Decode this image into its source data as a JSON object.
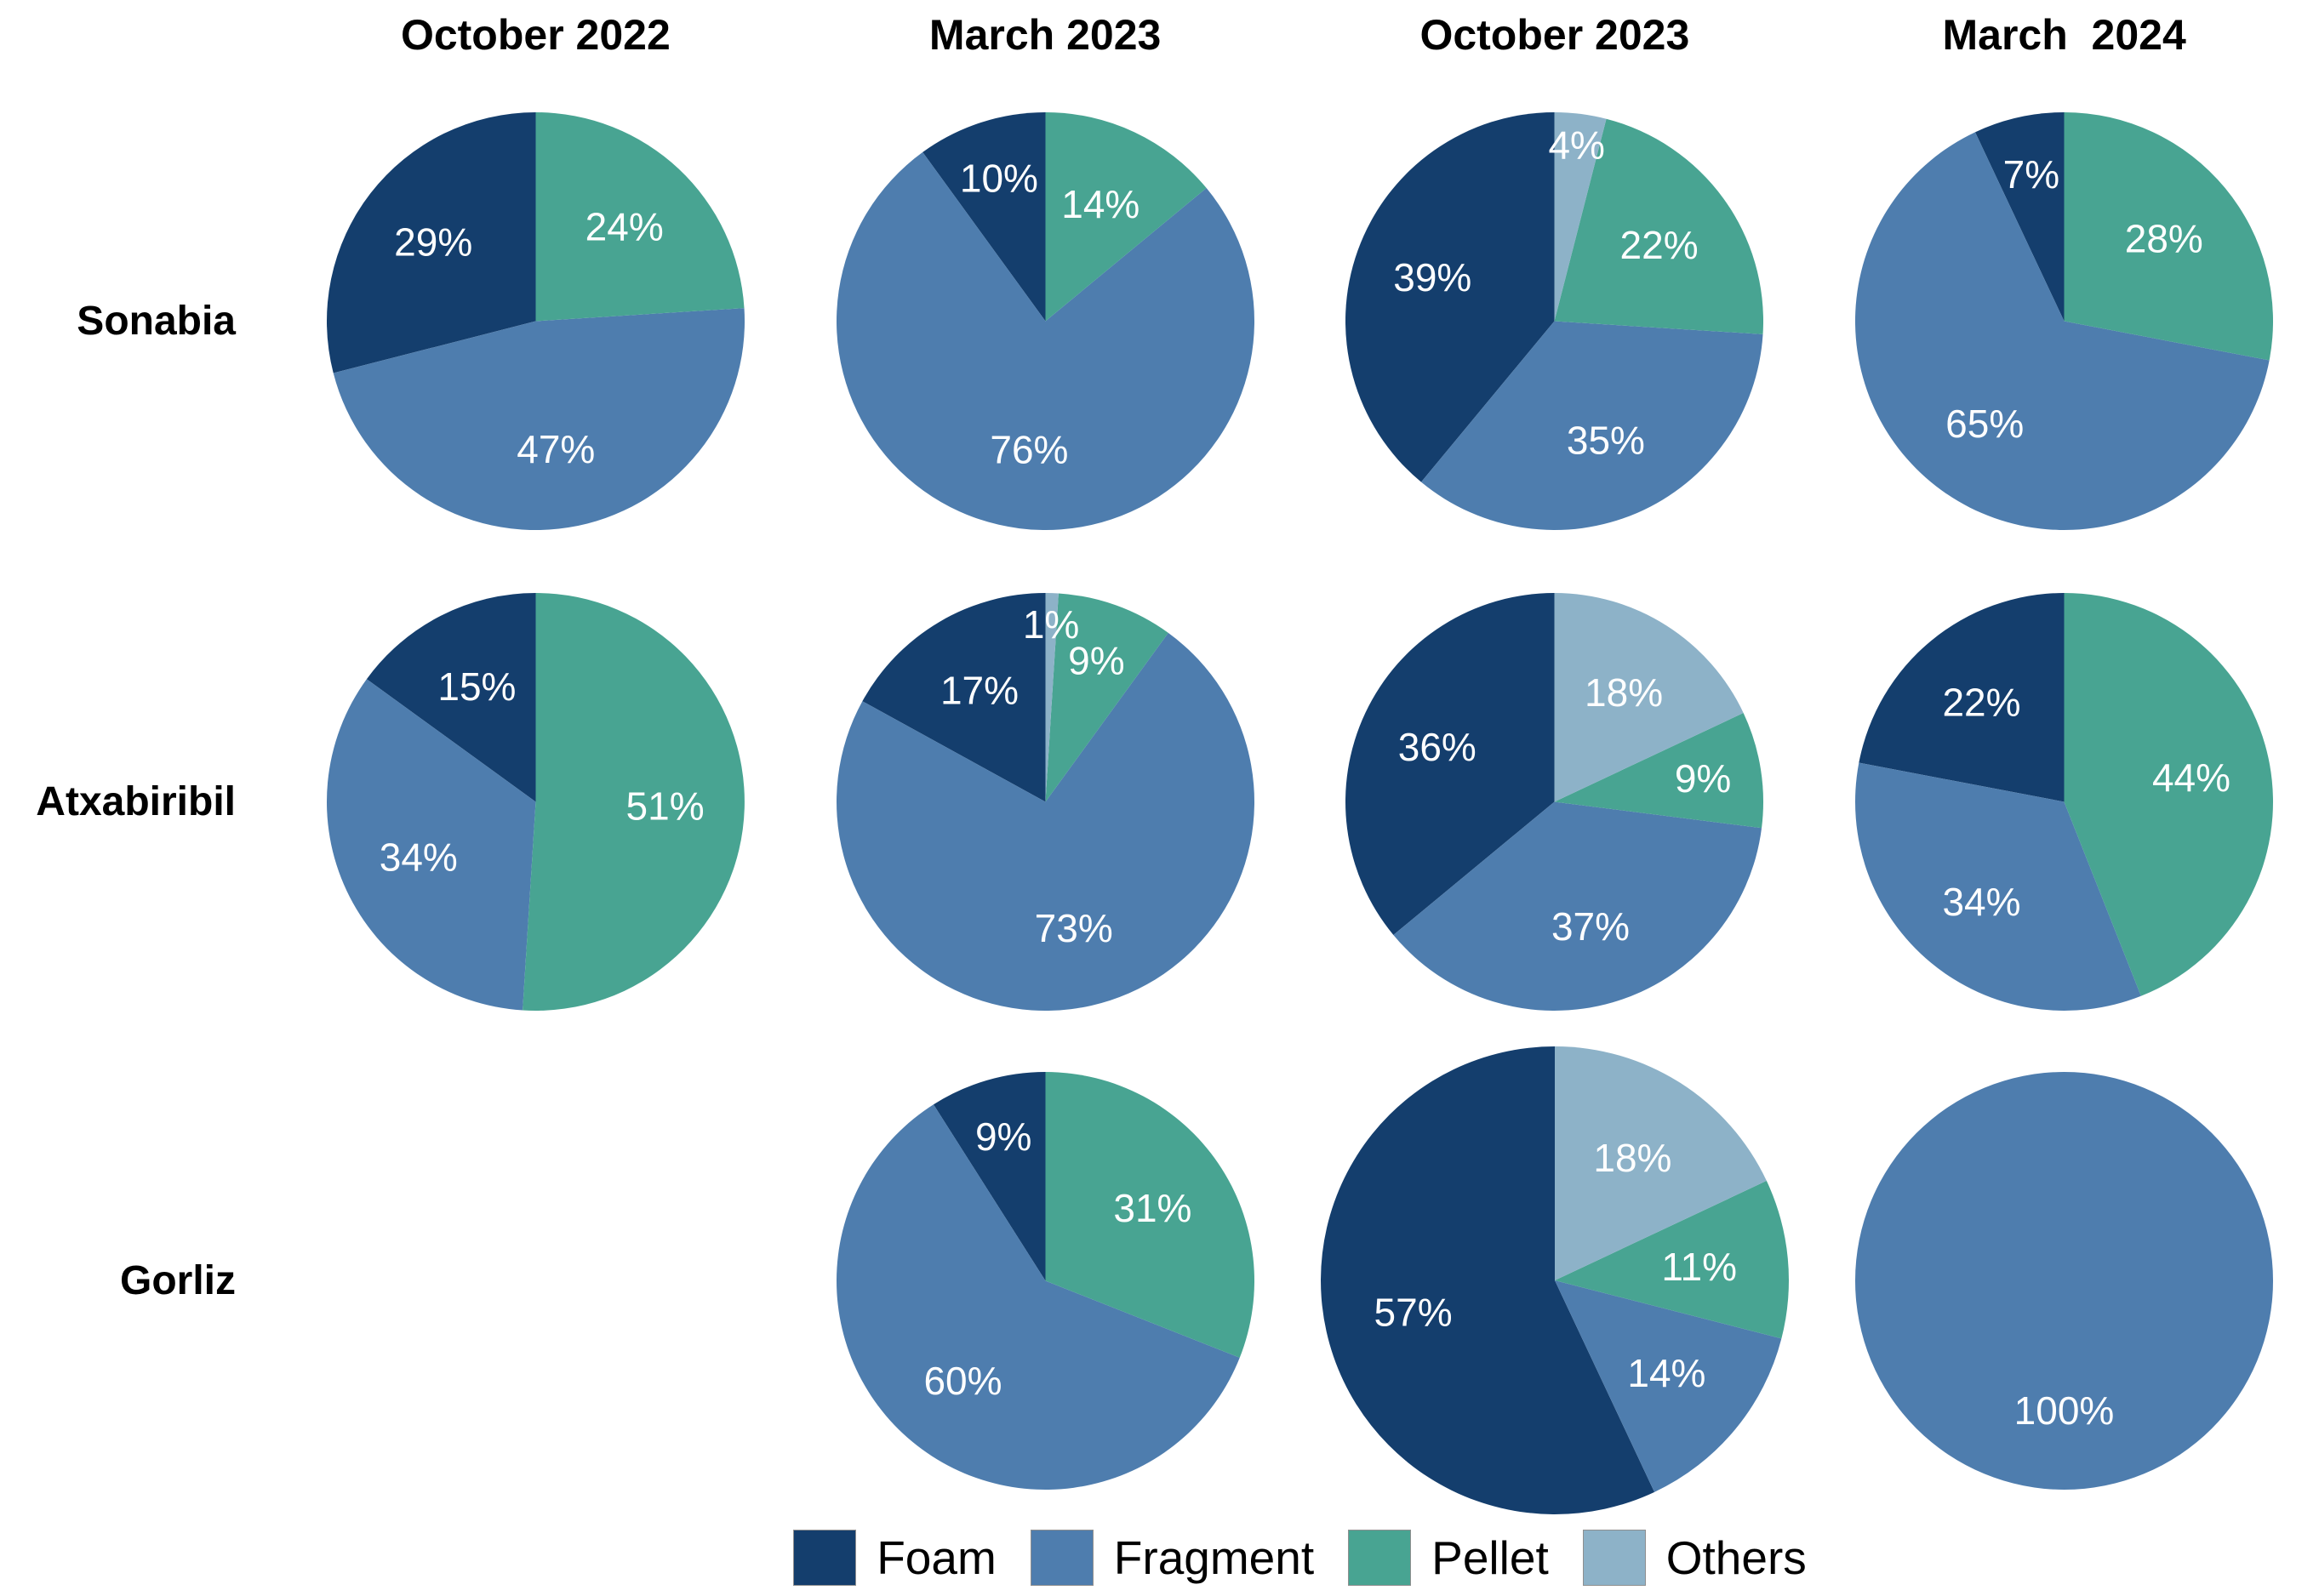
{
  "chart_data": {
    "type": "pie",
    "layout": "grid-of-pies",
    "title": "",
    "columns": [
      "October 2022",
      "March 2023",
      "October 2023",
      "March  2024"
    ],
    "rows": [
      "Sonabia",
      "Atxabiribil",
      "Gorliz"
    ],
    "categories": [
      "Foam",
      "Fragment",
      "Pellet",
      "Others"
    ],
    "colors": {
      "Foam": "#143e6d",
      "Fragment": "#4e7dae",
      "Pellet": "#48a492",
      "Others": "#8db2c8"
    },
    "label_color": "#ffffff",
    "start_angle": 90,
    "direction": "counterclockwise",
    "legend_position": "bottom",
    "pies": [
      {
        "row": "Sonabia",
        "column": "October 2022",
        "slices": [
          {
            "category": "Foam",
            "value": 29,
            "label": "29%"
          },
          {
            "category": "Fragment",
            "value": 47,
            "label": "47%"
          },
          {
            "category": "Pellet",
            "value": 24,
            "label": "24%"
          }
        ]
      },
      {
        "row": "Sonabia",
        "column": "March 2023",
        "slices": [
          {
            "category": "Foam",
            "value": 10,
            "label": "10%"
          },
          {
            "category": "Fragment",
            "value": 76,
            "label": "76%"
          },
          {
            "category": "Pellet",
            "value": 14,
            "label": "14%"
          }
        ]
      },
      {
        "row": "Sonabia",
        "column": "October 2023",
        "slices": [
          {
            "category": "Foam",
            "value": 39,
            "label": "39%"
          },
          {
            "category": "Fragment",
            "value": 35,
            "label": "35%"
          },
          {
            "category": "Pellet",
            "value": 22,
            "label": "22%"
          },
          {
            "category": "Others",
            "value": 4,
            "label": "4%"
          }
        ]
      },
      {
        "row": "Sonabia",
        "column": "March  2024",
        "slices": [
          {
            "category": "Foam",
            "value": 7,
            "label": "7%"
          },
          {
            "category": "Fragment",
            "value": 65,
            "label": "65%"
          },
          {
            "category": "Pellet",
            "value": 28,
            "label": "28%"
          }
        ]
      },
      {
        "row": "Atxabiribil",
        "column": "October 2022",
        "slices": [
          {
            "category": "Foam",
            "value": 15,
            "label": "15%"
          },
          {
            "category": "Fragment",
            "value": 34,
            "label": "34%"
          },
          {
            "category": "Pellet",
            "value": 51,
            "label": "51%"
          }
        ]
      },
      {
        "row": "Atxabiribil",
        "column": "March 2023",
        "slices": [
          {
            "category": "Foam",
            "value": 17,
            "label": "17%"
          },
          {
            "category": "Fragment",
            "value": 73,
            "label": "73%"
          },
          {
            "category": "Pellet",
            "value": 9,
            "label": "9%"
          },
          {
            "category": "Others",
            "value": 1,
            "label": "1%"
          }
        ]
      },
      {
        "row": "Atxabiribil",
        "column": "October 2023",
        "slices": [
          {
            "category": "Foam",
            "value": 36,
            "label": "36%"
          },
          {
            "category": "Fragment",
            "value": 37,
            "label": "37%"
          },
          {
            "category": "Pellet",
            "value": 9,
            "label": "9%"
          },
          {
            "category": "Others",
            "value": 18,
            "label": "18%"
          }
        ]
      },
      {
        "row": "Atxabiribil",
        "column": "March  2024",
        "slices": [
          {
            "category": "Foam",
            "value": 22,
            "label": "22%"
          },
          {
            "category": "Fragment",
            "value": 34,
            "label": "34%"
          },
          {
            "category": "Pellet",
            "value": 44,
            "label": "44%"
          }
        ]
      },
      null,
      {
        "row": "Gorliz",
        "column": "March 2023",
        "slices": [
          {
            "category": "Foam",
            "value": 9,
            "label": "9%"
          },
          {
            "category": "Fragment",
            "value": 60,
            "label": "60%"
          },
          {
            "category": "Pellet",
            "value": 31,
            "label": "31%"
          }
        ]
      },
      {
        "row": "Gorliz",
        "column": "October 2023",
        "radius_scale": 1.12,
        "slices": [
          {
            "category": "Foam",
            "value": 57,
            "label": "57%"
          },
          {
            "category": "Fragment",
            "value": 14,
            "label": "14%"
          },
          {
            "category": "Pellet",
            "value": 11,
            "label": "11%"
          },
          {
            "category": "Others",
            "value": 18,
            "label": "18%"
          }
        ]
      },
      {
        "row": "Gorliz",
        "column": "March  2024",
        "slices": [
          {
            "category": "Fragment",
            "value": 100,
            "label": "100%"
          }
        ]
      }
    ]
  }
}
